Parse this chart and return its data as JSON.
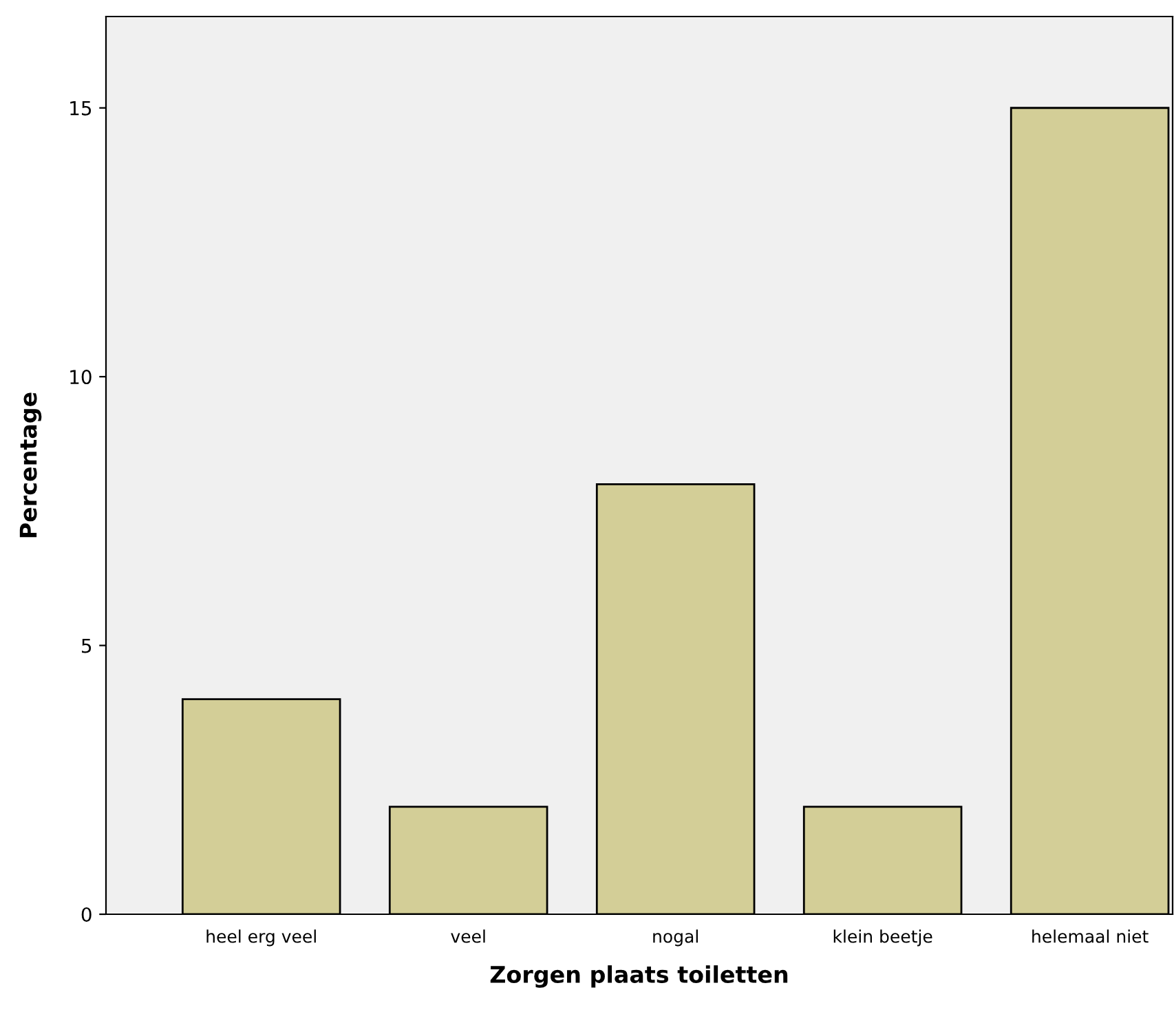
{
  "chart_data": {
    "type": "bar",
    "xlabel": "Zorgen plaats toiletten",
    "ylabel": "Percentage",
    "categories": [
      "heel erg veel",
      "veel",
      "nogal",
      "klein beetje",
      "helemaal niet"
    ],
    "values": [
      4,
      2,
      8,
      2,
      15
    ],
    "color": "#d3ce97",
    "ylim": [
      0,
      16.7
    ],
    "yticks": [
      0,
      5,
      10,
      15
    ],
    "grid": false,
    "legend": false
  }
}
